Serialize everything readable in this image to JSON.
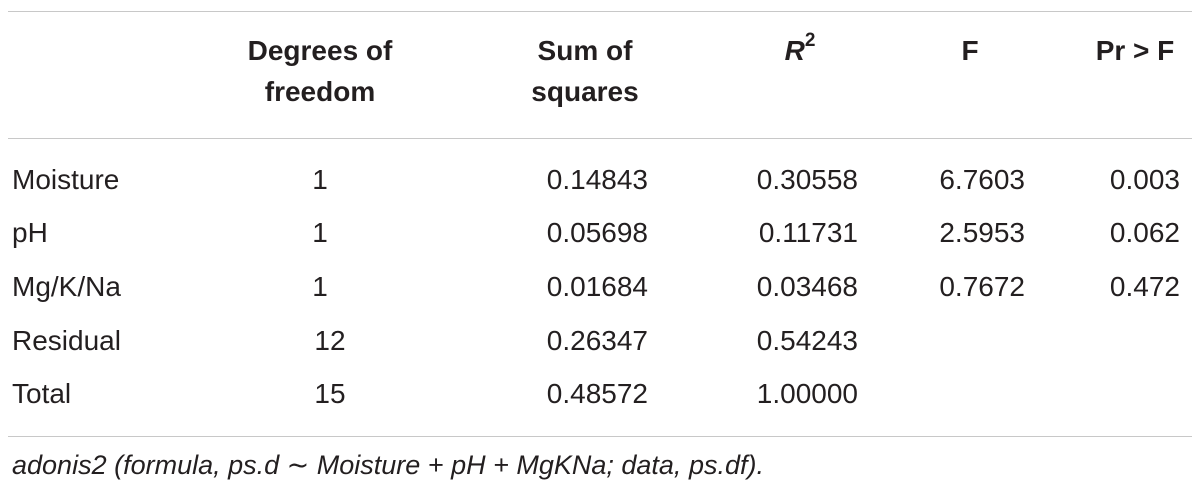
{
  "table": {
    "headers": {
      "df_line1": "Degrees of",
      "df_line2": "freedom",
      "ss_line1": "Sum of",
      "ss_line2": "squares",
      "r2_base": "R",
      "r2_exp": "2",
      "f": "F",
      "pr": "Pr > F"
    },
    "rows": [
      {
        "label": "Moisture",
        "df": "1",
        "ss": "0.14843",
        "r2": "0.30558",
        "f": "6.7603",
        "pr": "0.003"
      },
      {
        "label": "pH",
        "df": "1",
        "ss": "0.05698",
        "r2": "0.11731",
        "f": "2.5953",
        "pr": "0.062"
      },
      {
        "label": "Mg/K/Na",
        "df": "1",
        "ss": "0.01684",
        "r2": "0.03468",
        "f": "0.7672",
        "pr": "0.472"
      },
      {
        "label": "Residual",
        "df": "12",
        "ss": "0.26347",
        "r2": "0.54243",
        "f": "",
        "pr": ""
      },
      {
        "label": "Total",
        "df": "15",
        "ss": "0.48572",
        "r2": "1.00000",
        "f": "",
        "pr": ""
      }
    ],
    "footnote": "adonis2 (formula, ps.d ∼ Moisture + pH + MgKNa; data, ps.df)."
  }
}
